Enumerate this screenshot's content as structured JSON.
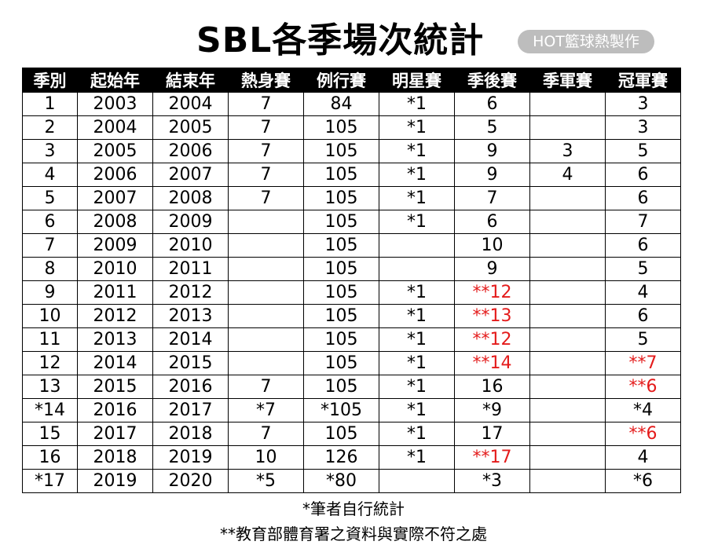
{
  "title": "SBL各季場次統計",
  "badge": "HOT籃球熱製作",
  "headers": [
    "季別",
    "起始年",
    "結束年",
    "熱身賽",
    "例行賽",
    "明星賽",
    "季後賽",
    "季軍賽",
    "冠軍賽"
  ],
  "rows": [
    [
      "1",
      "2003",
      "2004",
      "7",
      "84",
      "*1",
      "6",
      "",
      "3"
    ],
    [
      "2",
      "2004",
      "2005",
      "7",
      "105",
      "*1",
      "5",
      "",
      "3"
    ],
    [
      "3",
      "2005",
      "2006",
      "7",
      "105",
      "*1",
      "9",
      "3",
      "5"
    ],
    [
      "4",
      "2006",
      "2007",
      "7",
      "105",
      "*1",
      "9",
      "4",
      "6"
    ],
    [
      "5",
      "2007",
      "2008",
      "7",
      "105",
      "*1",
      "7",
      "",
      "6"
    ],
    [
      "6",
      "2008",
      "2009",
      "",
      "105",
      "*1",
      "6",
      "",
      "7"
    ],
    [
      "7",
      "2009",
      "2010",
      "",
      "105",
      "",
      "10",
      "",
      "6"
    ],
    [
      "8",
      "2010",
      "2011",
      "",
      "105",
      "",
      "9",
      "",
      "5"
    ],
    [
      "9",
      "2011",
      "2012",
      "",
      "105",
      "*1",
      "**12",
      "",
      "4"
    ],
    [
      "10",
      "2012",
      "2013",
      "",
      "105",
      "*1",
      "**13",
      "",
      "6"
    ],
    [
      "11",
      "2013",
      "2014",
      "",
      "105",
      "*1",
      "**12",
      "",
      "5"
    ],
    [
      "12",
      "2014",
      "2015",
      "",
      "105",
      "*1",
      "**14",
      "",
      "**7"
    ],
    [
      "13",
      "2015",
      "2016",
      "7",
      "105",
      "*1",
      "16",
      "",
      "**6"
    ],
    [
      "*14",
      "2016",
      "2017",
      "*7",
      "*105",
      "*1",
      "*9",
      "",
      "*4"
    ],
    [
      "15",
      "2017",
      "2018",
      "7",
      "105",
      "*1",
      "17",
      "",
      "**6"
    ],
    [
      "16",
      "2018",
      "2019",
      "10",
      "126",
      "*1",
      "**17",
      "",
      "4"
    ],
    [
      "*17",
      "2019",
      "2020",
      "*5",
      "*80",
      "",
      "*3",
      "",
      "*6"
    ]
  ],
  "highlight_color": "#e41b1b",
  "notes": {
    "self_stat": "*筆者自行統計",
    "mismatch": "**教育部體育署之資料與實際不符之處"
  }
}
